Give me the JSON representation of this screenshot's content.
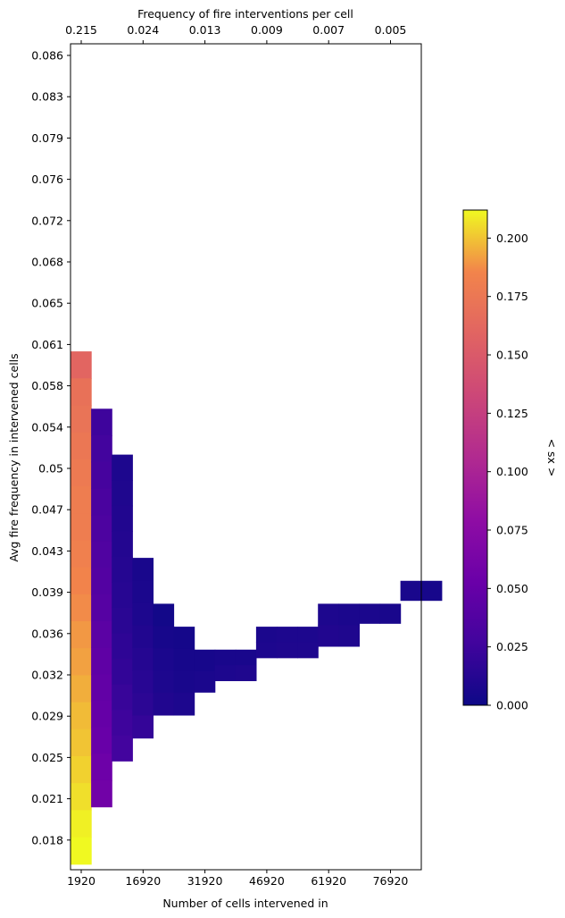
{
  "chart_data": {
    "type": "heatmap",
    "title": "",
    "xlabel": "Number of cells intervened in",
    "ylabel": "Avg fire frequency in intervened cells",
    "x2label": "Frequency of fire interventions per cell",
    "colorbar_label": "< sx >",
    "colormap": "plasma",
    "vlim": [
      0,
      0.212
    ],
    "x_ticks": [
      "1920",
      "16920",
      "31920",
      "46920",
      "61920",
      "76920"
    ],
    "x2_ticks": [
      "0.215",
      "0.024",
      "0.013",
      "0.009",
      "0.007",
      "0.005"
    ],
    "y_ticks": [
      "0.086",
      "0.083",
      "0.079",
      "0.076",
      "0.072",
      "0.068",
      "0.065",
      "0.061",
      "0.058",
      "0.054",
      "0.05",
      "0.047",
      "0.043",
      "0.039",
      "0.036",
      "0.032",
      "0.029",
      "0.025",
      "0.021",
      "0.018"
    ],
    "colorbar_ticks": [
      "0.000",
      "0.025",
      "0.050",
      "0.075",
      "0.100",
      "0.125",
      "0.150",
      "0.175",
      "0.200"
    ],
    "colorbar_tick_values": [
      0,
      0.025,
      0.05,
      0.075,
      0.1,
      0.125,
      0.15,
      0.175,
      0.2
    ],
    "grid": false,
    "columns": [
      {
        "x_index": 0,
        "y_from": 0.0155,
        "y_to": 0.0602,
        "values_top_to_bottom": [
          0.16,
          0.17,
          0.172,
          0.175,
          0.177,
          0.18,
          0.18,
          0.182,
          0.185,
          0.187,
          0.19,
          0.192,
          0.195,
          0.198,
          0.2,
          0.203,
          0.206,
          0.21,
          0.212
        ]
      },
      {
        "x_index": 1,
        "y_from": 0.0205,
        "y_to": 0.0552,
        "values_top_to_bottom": [
          0.025,
          0.028,
          0.03,
          0.032,
          0.034,
          0.036,
          0.038,
          0.04,
          0.043,
          0.046,
          0.048,
          0.05,
          0.052,
          0.055,
          0.058
        ]
      },
      {
        "x_index": 2,
        "y_from": 0.0245,
        "y_to": 0.0512,
        "values_top_to_bottom": [
          0.008,
          0.009,
          0.01,
          0.011,
          0.012,
          0.013,
          0.015,
          0.017,
          0.019,
          0.022,
          0.025,
          0.028
        ]
      },
      {
        "x_index": 3,
        "y_from": 0.0265,
        "y_to": 0.0422,
        "values_top_to_bottom": [
          0.006,
          0.007,
          0.008,
          0.01,
          0.012,
          0.014,
          0.016,
          0.02
        ]
      },
      {
        "x_index": 4,
        "y_from": 0.0285,
        "y_to": 0.0382,
        "values_top_to_bottom": [
          0.003,
          0.005,
          0.007,
          0.008,
          0.01
        ]
      },
      {
        "x_index": 5,
        "y_from": 0.0285,
        "y_to": 0.0362,
        "values_top_to_bottom": [
          0.004,
          0.005,
          0.006,
          0.008
        ]
      },
      {
        "x_index": 6,
        "y_from": 0.0305,
        "y_to": 0.0342,
        "values_top_to_bottom": [
          0.005,
          0.007
        ]
      },
      {
        "x_index": 7,
        "y_from": 0.0315,
        "y_to": 0.0342,
        "values_top_to_bottom": [
          0.006,
          0.008
        ]
      },
      {
        "x_index": 8,
        "y_from": 0.0315,
        "y_to": 0.0342,
        "values_top_to_bottom": [
          0.006,
          0.009
        ]
      },
      {
        "x_index": 9,
        "y_from": 0.0335,
        "y_to": 0.0362,
        "values_top_to_bottom": [
          0.007,
          0.008
        ]
      },
      {
        "x_index": 10,
        "y_from": 0.0335,
        "y_to": 0.0362,
        "values_top_to_bottom": [
          0.008,
          0.009
        ]
      },
      {
        "x_index": 11,
        "y_from": 0.0335,
        "y_to": 0.0362,
        "values_top_to_bottom": [
          0.008,
          0.009
        ]
      },
      {
        "x_index": 12,
        "y_from": 0.0345,
        "y_to": 0.0382,
        "values_top_to_bottom": [
          0.008,
          0.01
        ]
      },
      {
        "x_index": 13,
        "y_from": 0.0345,
        "y_to": 0.0382,
        "values_top_to_bottom": [
          0.007,
          0.009
        ]
      },
      {
        "x_index": 14,
        "y_from": 0.0365,
        "y_to": 0.0382,
        "values_top_to_bottom": [
          0.007
        ]
      },
      {
        "x_index": 15,
        "y_from": 0.0365,
        "y_to": 0.0382,
        "values_top_to_bottom": [
          0.006
        ]
      },
      {
        "x_index": 16,
        "y_from": 0.0385,
        "y_to": 0.0402,
        "values_top_to_bottom": [
          0.006
        ]
      },
      {
        "x_index": 17,
        "y_from": 0.0385,
        "y_to": 0.0402,
        "values_top_to_bottom": [
          0.005
        ]
      }
    ]
  }
}
